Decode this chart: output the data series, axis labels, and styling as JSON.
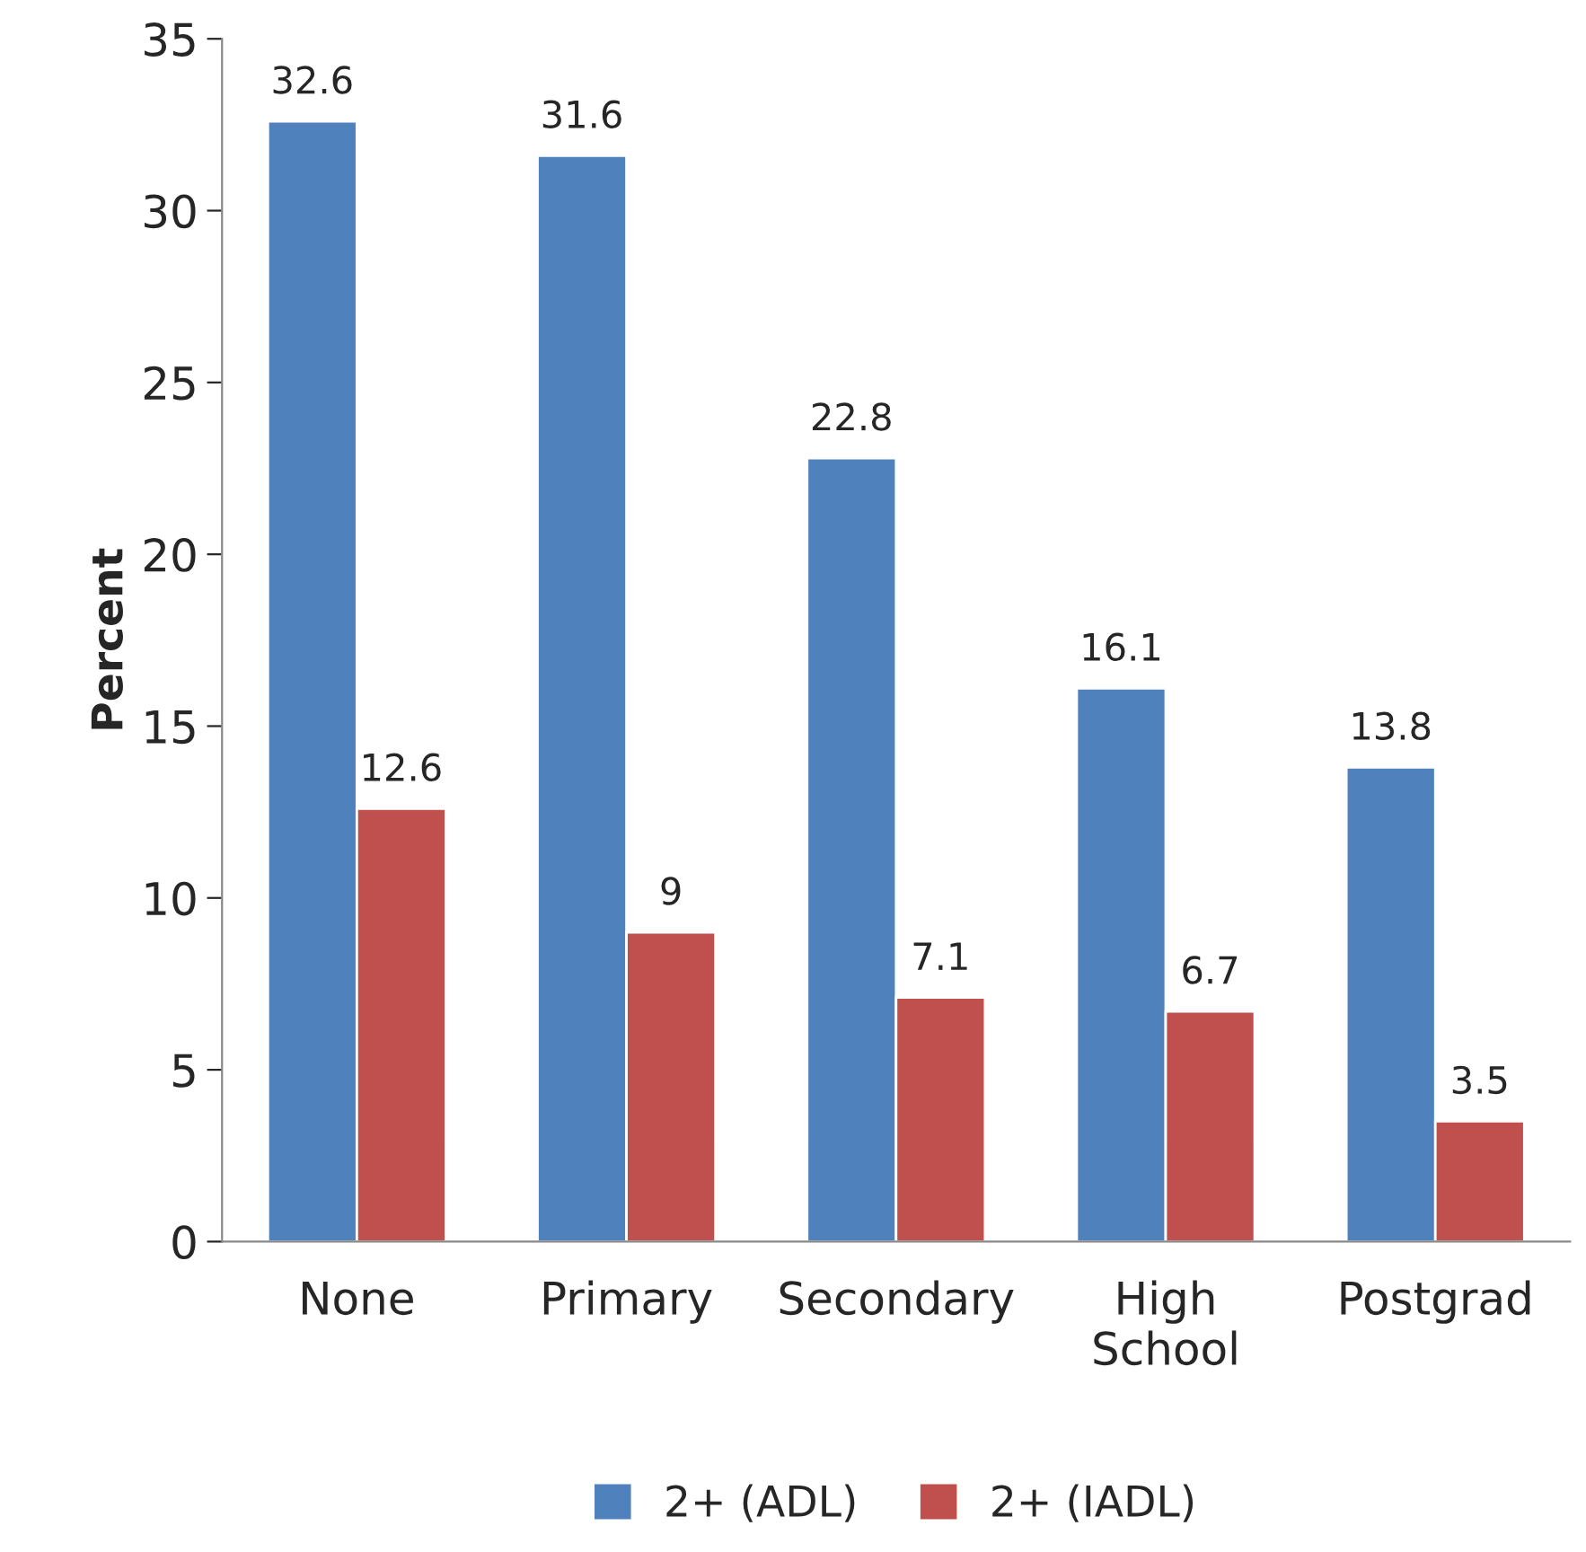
{
  "chart_data": {
    "type": "bar",
    "ylabel": "Percent",
    "categories": [
      "None",
      "Primary",
      "Secondary",
      "High\nSchool",
      "Postgrad"
    ],
    "series": [
      {
        "name": "2+ (ADL)",
        "color": "#4f81bd",
        "values": [
          32.6,
          31.6,
          22.8,
          16.1,
          13.8
        ]
      },
      {
        "name": "2+ (IADL)",
        "color": "#c0504d",
        "values": [
          12.6,
          9,
          7.1,
          6.7,
          3.5
        ]
      }
    ],
    "ylim": [
      0,
      35
    ],
    "yticks": [
      0,
      5,
      10,
      15,
      20,
      25,
      30,
      35
    ],
    "data_labels": true,
    "grid": false,
    "legend": "bottom"
  }
}
